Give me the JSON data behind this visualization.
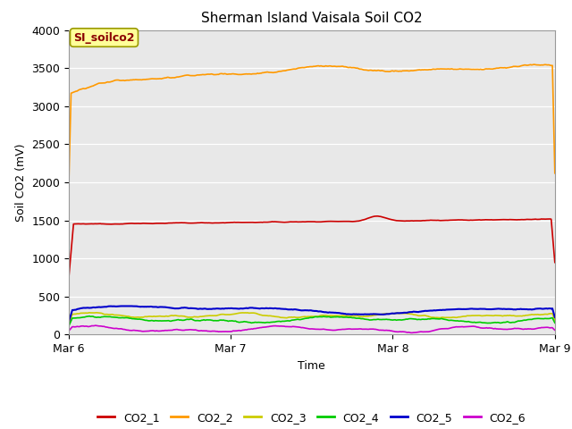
{
  "title": "Sherman Island Vaisala Soil CO2",
  "ylabel": "Soil CO2 (mV)",
  "xlabel": "Time",
  "annotation": "SI_soilco2",
  "xtick_labels": [
    "Mar 6",
    "Mar 7",
    "Mar 8",
    "Mar 9"
  ],
  "ylim": [
    0,
    4000
  ],
  "yticks": [
    0,
    500,
    1000,
    1500,
    2000,
    2500,
    3000,
    3500,
    4000
  ],
  "background_color": "#e8e8e8",
  "fig_background": "#ffffff",
  "series": {
    "CO2_1": {
      "color": "#cc0000"
    },
    "CO2_2": {
      "color": "#ff9900"
    },
    "CO2_3": {
      "color": "#cccc00"
    },
    "CO2_4": {
      "color": "#00cc00"
    },
    "CO2_5": {
      "color": "#0000cc"
    },
    "CO2_6": {
      "color": "#cc00cc"
    }
  }
}
